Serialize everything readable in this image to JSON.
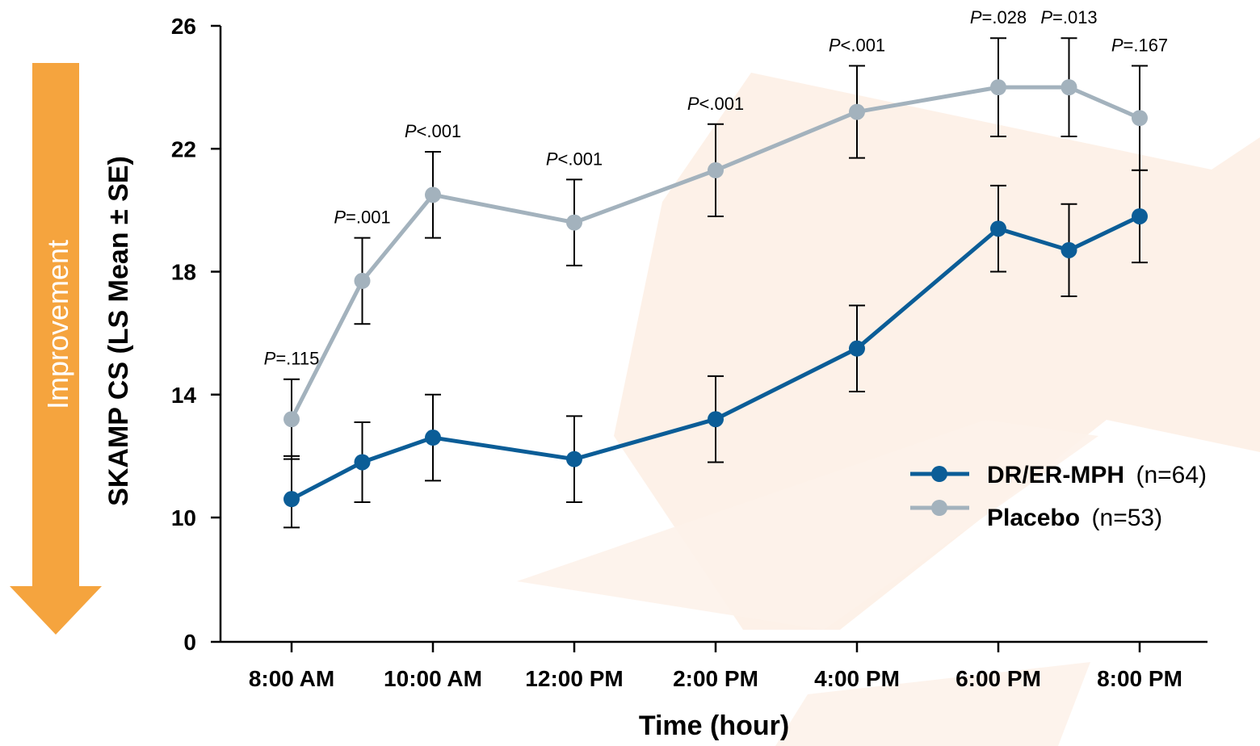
{
  "chart_data": {
    "type": "line",
    "xlabel": "Time (hour)",
    "ylabel": "SKAMP CS (LS Mean ± SE)",
    "annotation": "Improvement",
    "y_ticks": [
      0,
      10,
      14,
      18,
      22,
      26
    ],
    "ylim": [
      0,
      26
    ],
    "x_tick_labels": [
      "8:00 AM",
      "10:00 AM",
      "12:00 PM",
      "2:00 PM",
      "4:00 PM",
      "6:00 PM",
      "8:00 PM"
    ],
    "x_tick_hours": [
      8,
      10,
      12,
      14,
      16,
      18,
      20
    ],
    "x": [
      8,
      9,
      10,
      12,
      14,
      16,
      18,
      19,
      20
    ],
    "p_values": [
      "=.115",
      "=.001",
      "<.001",
      "<.001",
      "<.001",
      "<.001",
      "=.028",
      "=.013",
      "=.167"
    ],
    "p_prefix": "P",
    "legend_position": "bottom-right",
    "grid": false,
    "series": [
      {
        "name": "DR/ER-MPH",
        "n_label": "(n=64)",
        "color": "#0b5d97",
        "values": [
          10.6,
          11.8,
          12.6,
          11.9,
          13.2,
          15.5,
          19.4,
          18.7,
          19.8
        ],
        "se": [
          1.4,
          1.3,
          1.4,
          1.4,
          1.4,
          1.4,
          1.4,
          1.5,
          1.5
        ]
      },
      {
        "name": "Placebo",
        "n_label": "(n=53)",
        "color": "#a3b2bd",
        "values": [
          13.2,
          17.7,
          20.5,
          19.6,
          21.3,
          23.2,
          24.0,
          24.0,
          23.0
        ],
        "se": [
          1.3,
          1.4,
          1.4,
          1.4,
          1.5,
          1.5,
          1.6,
          1.6,
          1.7
        ]
      }
    ],
    "colors": {
      "axis": "#000000",
      "arrow": "#f5a43e",
      "watermark": "#fdf0e6"
    }
  }
}
